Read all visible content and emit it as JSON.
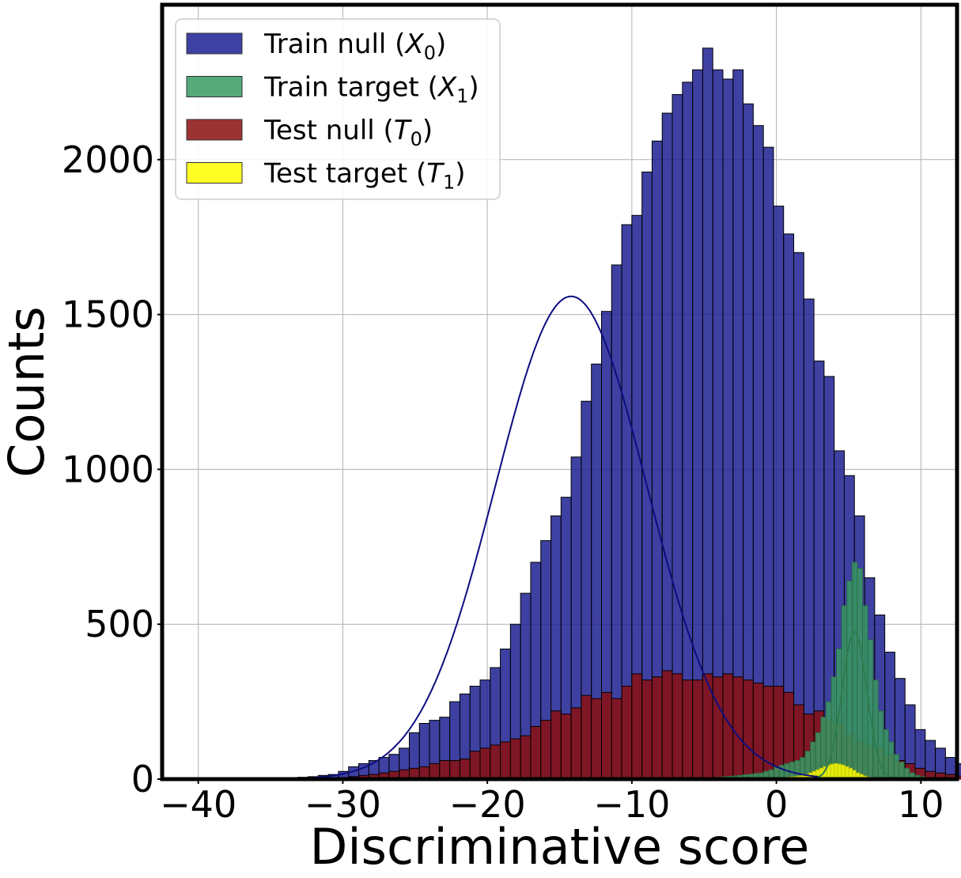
{
  "chart_data": {
    "type": "bar",
    "subtype": "histogram",
    "xlabel": "Discriminative score",
    "ylabel": "Counts",
    "xlim": [
      -42.5,
      12.5
    ],
    "ylim": [
      0,
      2500
    ],
    "xticks": [
      -40,
      -30,
      -20,
      -10,
      0,
      10
    ],
    "xtick_labels": [
      "−40",
      "−30",
      "−20",
      "−10",
      "0",
      "10"
    ],
    "yticks": [
      0,
      500,
      1000,
      1500,
      2000
    ],
    "ytick_labels": [
      "0",
      "500",
      "1000",
      "1500",
      "2000"
    ],
    "grid": true,
    "legend_position": "top-left",
    "legend": [
      {
        "text": "Train null (",
        "var": "X",
        "sub": "0",
        "close": ")",
        "color": "#1c2091"
      },
      {
        "text": "Train target (",
        "var": "X",
        "sub": "1",
        "close": ")",
        "color": "#3a9a64"
      },
      {
        "text": "Test null (",
        "var": "T",
        "sub": "0",
        "close": ")",
        "color": "#8b0f0f"
      },
      {
        "text": "Test target (",
        "var": "T",
        "sub": "1",
        "close": ")",
        "color": "#ffff00"
      }
    ],
    "series": [
      {
        "name": "Train null (X0)",
        "color": "#1c2091",
        "edgecolor": "#000000",
        "bin_start": -38.0,
        "bin_width": 0.7,
        "values": [
          1,
          1,
          2,
          2,
          3,
          4,
          5,
          6,
          8,
          12,
          15,
          25,
          40,
          50,
          60,
          70,
          80,
          100,
          150,
          180,
          190,
          200,
          250,
          275,
          300,
          320,
          360,
          420,
          500,
          600,
          700,
          770,
          850,
          910,
          1040,
          1220,
          1340,
          1510,
          1660,
          1790,
          1820,
          1960,
          2060,
          2150,
          2210,
          2250,
          2290,
          2360,
          2290,
          2260,
          2290,
          2180,
          2110,
          2040,
          1850,
          1760,
          1700,
          1550,
          1350,
          1300,
          1060,
          980,
          850,
          650,
          530,
          410,
          325,
          240,
          160,
          125,
          100,
          70,
          50,
          30,
          15,
          8,
          5,
          3,
          2,
          1
        ]
      },
      {
        "name": "Test null (T0)",
        "color": "#8b0f0f",
        "edgecolor": "#000000",
        "bin_start": -38.0,
        "bin_width": 0.7,
        "values": [
          0,
          0,
          0,
          1,
          1,
          1,
          1,
          1,
          2,
          3,
          4,
          5,
          8,
          12,
          15,
          20,
          25,
          30,
          35,
          40,
          50,
          60,
          60,
          65,
          90,
          100,
          110,
          120,
          130,
          140,
          170,
          190,
          220,
          210,
          230,
          270,
          260,
          280,
          260,
          300,
          340,
          320,
          330,
          350,
          340,
          320,
          320,
          340,
          330,
          340,
          330,
          320,
          310,
          300,
          300,
          280,
          240,
          210,
          220,
          190,
          180,
          145,
          120,
          110,
          100,
          80,
          60,
          50,
          35,
          25,
          20,
          15,
          10,
          8,
          5,
          3,
          2,
          1,
          1,
          0
        ]
      },
      {
        "name": "Train target (X1)",
        "color": "#3a9a64",
        "edgecolor": "#2d6a44",
        "bin_start": -7.0,
        "bin_width": 0.36,
        "values": [
          1,
          1,
          2,
          2,
          3,
          4,
          5,
          5,
          6,
          8,
          9,
          10,
          12,
          14,
          16,
          18,
          20,
          25,
          30,
          40,
          45,
          50,
          55,
          60,
          70,
          90,
          120,
          150,
          200,
          250,
          330,
          420,
          560,
          640,
          700,
          680,
          560,
          450,
          320,
          220,
          160,
          120,
          80,
          55,
          35,
          20,
          12,
          8,
          5,
          3
        ]
      },
      {
        "name": "Test target (T1)",
        "color": "#ffff00",
        "edgecolor": "#c8c800",
        "bin_start": -2.0,
        "bin_width": 0.25,
        "values": [
          1,
          1,
          1,
          2,
          2,
          2,
          3,
          3,
          4,
          4,
          5,
          6,
          7,
          8,
          10,
          12,
          15,
          20,
          25,
          30,
          35,
          40,
          45,
          48,
          50,
          48,
          45,
          40,
          35,
          28,
          20,
          15,
          10,
          6,
          4,
          2,
          1
        ]
      }
    ],
    "fitted_curves": [
      {
        "name": "Train null (X0) KDE",
        "color": "#0d0d80",
        "mean": -14.2,
        "sd": 5.25,
        "scale": 29300,
        "x_range": [
          -40,
          3
        ]
      },
      {
        "name": "Train target (X1) KDE",
        "color": "#2e7d4f",
        "mean": 5.4,
        "sd": 0.85,
        "scale": 1450,
        "x_range": [
          -7,
          10
        ]
      }
    ]
  }
}
